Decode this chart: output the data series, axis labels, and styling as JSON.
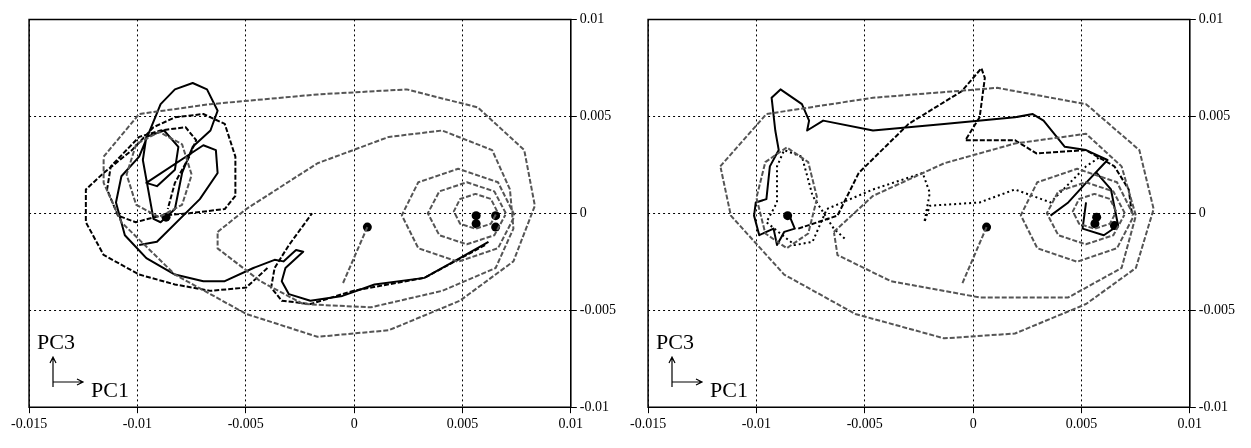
{
  "chart_data": [
    {
      "type": "line",
      "xlim": [
        -0.015,
        0.01
      ],
      "ylim": [
        -0.01,
        0.01
      ],
      "xticks": [
        -0.015,
        -0.01,
        -0.005,
        0,
        0.005,
        0.01
      ],
      "yticks": [
        -0.01,
        -0.005,
        0,
        0.005,
        0.01
      ],
      "grid": true,
      "annotations": [
        "PC3",
        "PC1"
      ],
      "series": [
        {
          "type": "line",
          "line_style": "dashed",
          "color": "#555555",
          "x": [
            -0.01156,
            -0.00992,
            -0.00663,
            -0.00169,
            0.00242,
            0.00571,
            0.00785,
            0.00834,
            0.00735,
            0.00488,
            0.0016,
            -0.00169,
            -0.00498,
            -0.00827,
            -0.01074,
            -0.01156,
            -0.01156
          ],
          "values": [
            0.00292,
            0.00512,
            0.00563,
            0.00613,
            0.00639,
            0.00546,
            0.00326,
            0.00039,
            -0.00248,
            -0.00451,
            -0.00603,
            -0.00637,
            -0.00519,
            -0.00316,
            -0.00046,
            0.00157,
            0.00285
          ]
        },
        {
          "type": "line",
          "line_style": "dashed",
          "color": "#555555",
          "x": [
            -0.0063,
            -0.00498,
            -0.00169,
            0.0016,
            0.00406,
            0.00637,
            0.00719,
            0.00735,
            0.00653,
            0.00406,
            0.00077,
            -0.00235,
            -0.00433,
            -0.0063,
            -0.0063
          ],
          "values": [
            -0.00096,
            0.00022,
            0.00258,
            0.00394,
            0.00427,
            0.00326,
            0.00123,
            -0.00079,
            -0.00282,
            -0.004,
            -0.00485,
            -0.00468,
            -0.0035,
            -0.00181,
            -0.001
          ]
        },
        {
          "type": "line",
          "line_style": "dashed",
          "color": "#555555",
          "x": [
            0.0074,
            0.00664,
            0.0048,
            0.00296,
            0.0022,
            0.00296,
            0.0048,
            0.00664,
            0.00738
          ],
          "values": [
            -0.0001,
            0.0016,
            0.0023,
            0.0016,
            -0.0001,
            -0.0018,
            -0.0025,
            -0.0018,
            -0.0002
          ]
        },
        {
          "type": "line",
          "line_style": "dashed",
          "color": "#555555",
          "x": [
            0.007,
            0.00647,
            0.0052,
            0.00393,
            0.0034,
            0.00393,
            0.0052,
            0.00647,
            0.00698
          ],
          "values": [
            0,
            0.00113,
            0.0016,
            0.00113,
            0,
            -0.00113,
            -0.0016,
            -0.00113,
            -8e-05
          ]
        },
        {
          "type": "line",
          "line_style": "dashed",
          "color": "#555555",
          "x": [
            0.0066,
            0.00631,
            0.0056,
            0.00489,
            0.0046,
            0.00489,
            0.0056,
            0.00631,
            0.00658
          ],
          "values": [
            0.0001,
            0.00074,
            0.001,
            0.00074,
            0.0001,
            -0.00054,
            -0.0008,
            -0.00054,
            3e-05
          ]
        },
        {
          "type": "line",
          "line_style": "dashed",
          "color": "#555555",
          "x": [
            -0.0075,
            -0.00794,
            -0.009,
            -0.01006,
            -0.0105,
            -0.01006,
            -0.009,
            -0.00794,
            -0.00752
          ],
          "values": [
            0.002,
            0.00356,
            0.0042,
            0.00356,
            0.002,
            0.00044,
            -0.0002,
            0.00044,
            0.0019
          ]
        },
        {
          "type": "line",
          "line_style": "dashed",
          "color": "#555555",
          "x": [
            0.00061,
            -0.00054
          ],
          "values": [
            -0.00071,
            -0.00367
          ]
        },
        {
          "type": "line",
          "line_style": "solid",
          "color": "#000000",
          "x": [
            0.0062,
            0.00488,
            0.00324,
            0.00094,
            -0.00054,
            -0.00202,
            -0.00301,
            -0.00334,
            -0.00317,
            -0.00235,
            -0.00268,
            -0.00326,
            -0.00367,
            -0.00465,
            -0.00597,
            -0.00696,
            -0.00827,
            -0.00959,
            -0.01058,
            -0.01099,
            -0.01074,
            -0.00992,
            -0.00893,
            -0.00827,
            -0.00745,
            -0.00679,
            -0.0063,
            -0.00663,
            -0.00745,
            -0.00794,
            -0.00827,
            -0.00893,
            -0.00926,
            -0.00975,
            -0.00959,
            -0.00877,
            -0.00811,
            -0.00827,
            -0.0091,
            -0.00959,
            -0.00696,
            -0.00638,
            -0.0063,
            -0.00712,
            -0.0091,
            -0.00992
          ],
          "values": [
            -0.00147,
            -0.00231,
            -0.00333,
            -0.00367,
            -0.00426,
            -0.00451,
            -0.00417,
            -0.0035,
            -0.00282,
            -0.00198,
            -0.00189,
            -0.00248,
            -0.0024,
            -0.00282,
            -0.0035,
            -0.0035,
            -0.00316,
            -0.00231,
            -0.00113,
            0.00056,
            0.00191,
            0.00292,
            0.00563,
            0.00639,
            0.00672,
            0.00639,
            0.00529,
            0.00427,
            0.00343,
            0.00208,
            0.00022,
            -0.00046,
            -0.00029,
            0.00275,
            0.00394,
            0.00427,
            0.00343,
            0.00225,
            0.0014,
            0.00157,
            0.00351,
            0.00326,
            0.00208,
            0.00073,
            -0.00147,
            -0.00164
          ]
        },
        {
          "type": "line",
          "line_style": "dashed",
          "color": "#000000",
          "x": [
            0.00604,
            0.00324,
            -5e-05,
            -0.00202,
            -0.00334,
            -0.00383,
            -0.00367,
            -0.00301,
            -0.00194,
            null,
            -0.004,
            -0.00498,
            -0.00663,
            -0.00827,
            -0.00992,
            -0.01156,
            -0.01238,
            -0.01238,
            -0.01156,
            -0.01025,
            -0.00926,
            -0.00827,
            -0.00696,
            -0.00597,
            -0.00548,
            -0.00548,
            -0.00597,
            -0.00761,
            -0.00893,
            -0.01008,
            -0.0109,
            -0.0114,
            -0.01123,
            -0.00992,
            -0.00893,
            -0.00778,
            -0.00729,
            -0.00761,
            -0.00827,
            -0.0086
          ],
          "values": [
            -0.00164,
            -0.00333,
            -0.004,
            -0.00468,
            -0.00451,
            -0.00383,
            -0.00282,
            -0.00164,
            0,
            null,
            -0.00282,
            -0.00383,
            -0.004,
            -0.00367,
            -0.00316,
            -0.00215,
            -0.00046,
            0.00123,
            0.00208,
            0.00326,
            0.00444,
            0.00495,
            0.00512,
            0.00461,
            0.00292,
            0.0009,
            0.00022,
            0,
            -0.00012,
            -0.00046,
            -0.00012,
            0.00123,
            0.00242,
            0.00394,
            0.00427,
            0.00444,
            0.00377,
            0.00292,
            0.00157,
            0.00022
          ]
        },
        {
          "type": "scatter",
          "marker": "circle",
          "color": "#000000",
          "x": [
            -0.00868,
            0.00061,
            0.00563,
            0.00563,
            0.00653,
            0.00653
          ],
          "values": [
            -0.0002,
            -0.00071,
            -0.00012,
            -0.00054,
            -0.00012,
            -0.00071
          ]
        }
      ]
    },
    {
      "type": "line",
      "xlim": [
        -0.015,
        0.01
      ],
      "ylim": [
        -0.01,
        0.01
      ],
      "xticks": [
        -0.015,
        -0.01,
        -0.005,
        0,
        0.005,
        0.01
      ],
      "yticks": [
        -0.01,
        -0.005,
        0,
        0.005,
        0.01
      ],
      "grid": true,
      "annotations": [
        "PC3",
        "PC1"
      ],
      "series": [
        {
          "type": "line",
          "line_style": "dashed",
          "color": "#555555",
          "x": [
            -0.01167,
            -0.00954,
            -0.00462,
            0.00111,
            0.00521,
            0.00767,
            0.00833,
            0.00751,
            0.00521,
            0.00193,
            -0.00134,
            -0.00544,
            -0.00872,
            -0.01118,
            -0.01165
          ],
          "values": [
            0.00242,
            0.00512,
            0.00596,
            0.00647,
            0.00563,
            0.00326,
            0.00022,
            -0.00282,
            -0.00468,
            -0.0062,
            -0.00645,
            -0.00519,
            -0.00316,
            -0.00012,
            0.00235
          ]
        },
        {
          "type": "line",
          "line_style": "dashed",
          "color": "#555555",
          "x": [
            -0.00643,
            -0.00462,
            -0.00134,
            0.00193,
            0.00521,
            0.00685,
            0.00751,
            0.00685,
            0.00439,
            0.0003,
            -0.0038,
            -0.00626,
            -0.00642
          ],
          "values": [
            -0.00096,
            0.0009,
            0.00258,
            0.0036,
            0.0041,
            0.00242,
            -0.00012,
            -0.00282,
            -0.00434,
            -0.00434,
            -0.0035,
            -0.00215,
            -0.001
          ]
        },
        {
          "type": "line",
          "line_style": "dashed",
          "color": "#555555",
          "x": [
            0.0074,
            0.00664,
            0.0048,
            0.00296,
            0.0022,
            0.00296,
            0.0048,
            0.00664,
            0.00738
          ],
          "values": [
            -0.0001,
            0.0016,
            0.0023,
            0.0016,
            -0.0001,
            -0.0018,
            -0.0025,
            -0.0018,
            -0.0002
          ]
        },
        {
          "type": "line",
          "line_style": "dashed",
          "color": "#555555",
          "x": [
            0.007,
            0.00647,
            0.0052,
            0.00393,
            0.0034,
            0.00393,
            0.0052,
            0.00647,
            0.00698
          ],
          "values": [
            0,
            0.00113,
            0.0016,
            0.00113,
            0,
            -0.00113,
            -0.0016,
            -0.00113,
            -8e-05
          ]
        },
        {
          "type": "line",
          "line_style": "dashed",
          "color": "#555555",
          "x": [
            0.0066,
            0.00631,
            0.0056,
            0.00489,
            0.0046,
            0.00489,
            0.0056,
            0.00631,
            0.00658
          ],
          "values": [
            0.0001,
            0.00074,
            0.001,
            0.00074,
            0.0001,
            -0.00054,
            -0.0008,
            -0.00054,
            3e-05
          ]
        },
        {
          "type": "line",
          "line_style": "dashed",
          "color": "#555555",
          "x": [
            -0.0072,
            -0.00761,
            -0.0086,
            -0.00959,
            -0.01,
            -0.00959,
            -0.0086,
            -0.00761,
            -0.00722
          ],
          "values": [
            0.0008,
            0.00264,
            0.0034,
            0.00264,
            0.0008,
            -0.00104,
            -0.0018,
            -0.00104,
            0.0007
          ]
        },
        {
          "type": "line",
          "line_style": "dashed",
          "color": "#555555",
          "x": [
            0.00062,
            -0.00052
          ],
          "values": [
            -0.00071,
            -0.00367
          ]
        },
        {
          "type": "line",
          "line_style": "solid",
          "color": "#000000",
          "x": [
            0.00357,
            0.00439,
            0.00521,
            0.0062,
            0.00521,
            0.00423,
            0.00325,
            0.00275,
            0.00193,
            -0.00134,
            -0.00462,
            -0.00692,
            -0.00766,
            -0.00757,
            -0.0079,
            -0.00889,
            -0.0093,
            -0.00913,
            -0.00897,
            -0.00938,
            -0.00954,
            -0.01003,
            -0.01011,
            -0.00987,
            -0.00921,
            -0.00905,
            -0.00872,
            -0.00823,
            -0.00848,
            null,
            0.00521,
            0.00505,
            0.00603,
            0.00669,
            0.00636,
            0.0057
          ],
          "values": [
            -0.00012,
            0.00056,
            0.00157,
            0.00275,
            0.00326,
            0.00343,
            0.00478,
            0.00512,
            0.00495,
            0.00461,
            0.00427,
            0.00478,
            0.00427,
            0.00478,
            0.00563,
            0.00639,
            0.00596,
            0.00427,
            0.00326,
            0.00242,
            0.00073,
            0.00056,
            -0.00012,
            -0.00113,
            -0.00079,
            -0.00164,
            -0.00096,
            -0.00079,
            -0.00012,
            null,
            0.00056,
            -0.00079,
            -0.00113,
            -0.00063,
            0.00123,
            0.00208
          ]
        },
        {
          "type": "line",
          "line_style": "dashed",
          "color": "#000000",
          "x": [
            -0.00807,
            -0.00626,
            -0.00528,
            -0.00298,
            -0.00052,
            0.00038,
            0.00054,
            0.0003,
            -0.00036,
            0.00193,
            0.00292,
            0.00521,
            0.00652,
            0.00718,
            0.00734
          ],
          "values": [
            -0.00079,
            -0.00012,
            0.00208,
            0.00461,
            0.0063,
            0.00748,
            0.00698,
            0.00495,
            0.00377,
            0.00377,
            0.00309,
            0.00326,
            0.00242,
            0.00123,
            -0.00012
          ]
        },
        {
          "type": "line",
          "line_style": "dotted",
          "color": "#000000",
          "x": [
            -0.00593,
            -0.00643,
            -0.00741,
            -0.0079,
            -0.00872,
            -0.00905,
            -0.00905,
            -0.00954,
            -0.00823,
            -0.00741,
            -0.00675,
            -0.00462,
            -0.00233,
            -0.002,
            -0.00225,
            -0.002,
            0.0003,
            0.00193,
            0.00357,
            0.00521,
            0.00587
          ],
          "values": [
            -0.0013,
            -0.00079,
            0.0009,
            0.00292,
            0.00326,
            0.00242,
            0.00056,
            -0.00046,
            -0.00164,
            -0.00147,
            0.00022,
            0.00123,
            0.00208,
            0.00106,
            -0.00046,
            0.00039,
            0.00056,
            0.00123,
            0.00056,
            0.00242,
            0.00292
          ]
        },
        {
          "type": "scatter",
          "marker": "circle",
          "color": "#000000",
          "x": [
            -0.00856,
            0.00062,
            0.0057,
            0.00562,
            0.00652
          ],
          "values": [
            -0.00012,
            -0.00071,
            -0.0002,
            -0.00054,
            -0.00063
          ]
        }
      ]
    }
  ]
}
